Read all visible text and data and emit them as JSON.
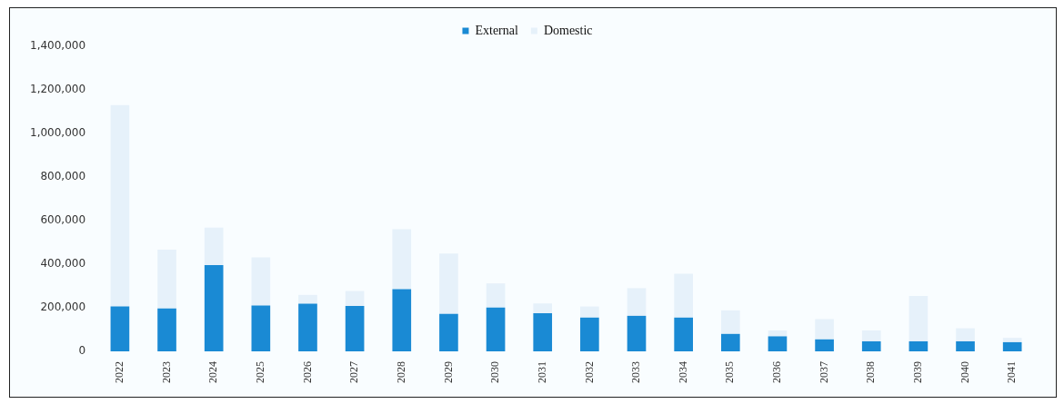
{
  "chart_data": {
    "type": "bar",
    "stacked": true,
    "legend": "top",
    "grid": false,
    "categories": [
      "2022",
      "2023",
      "2024",
      "2025",
      "2026",
      "2027",
      "2028",
      "2029",
      "2030",
      "2031",
      "2032",
      "2033",
      "2034",
      "2035",
      "2036",
      "2037",
      "2038",
      "2039",
      "2040",
      "2041"
    ],
    "series": [
      {
        "name": "External",
        "color": "#1a8ad4",
        "values": [
          206000,
          197000,
          396000,
          210000,
          219000,
          208000,
          285000,
          172000,
          201000,
          175000,
          155000,
          163000,
          155000,
          80000,
          69000,
          55000,
          46000,
          46000,
          46000,
          42000
        ]
      },
      {
        "name": "Domestic",
        "color": "#e6f1fa",
        "values": [
          924000,
          270000,
          172000,
          221000,
          40000,
          69000,
          275000,
          277000,
          111000,
          45000,
          51000,
          127000,
          201000,
          108000,
          27000,
          93000,
          50000,
          208000,
          60000,
          20000
        ]
      }
    ],
    "ylim": [
      0,
      1400000
    ],
    "yticks": [
      0,
      {
        "value": 200000,
        "label": "200,000"
      },
      {
        "value": 400000,
        "label": "400,000"
      },
      {
        "value": 600000,
        "label": "600,000"
      },
      {
        "value": 800000,
        "label": "800,000"
      },
      {
        "value": 1000000,
        "label": "1,000,000"
      },
      {
        "value": 1200000,
        "label": "1,200,000"
      },
      {
        "value": 1400000,
        "label": "1,400,000"
      }
    ]
  }
}
